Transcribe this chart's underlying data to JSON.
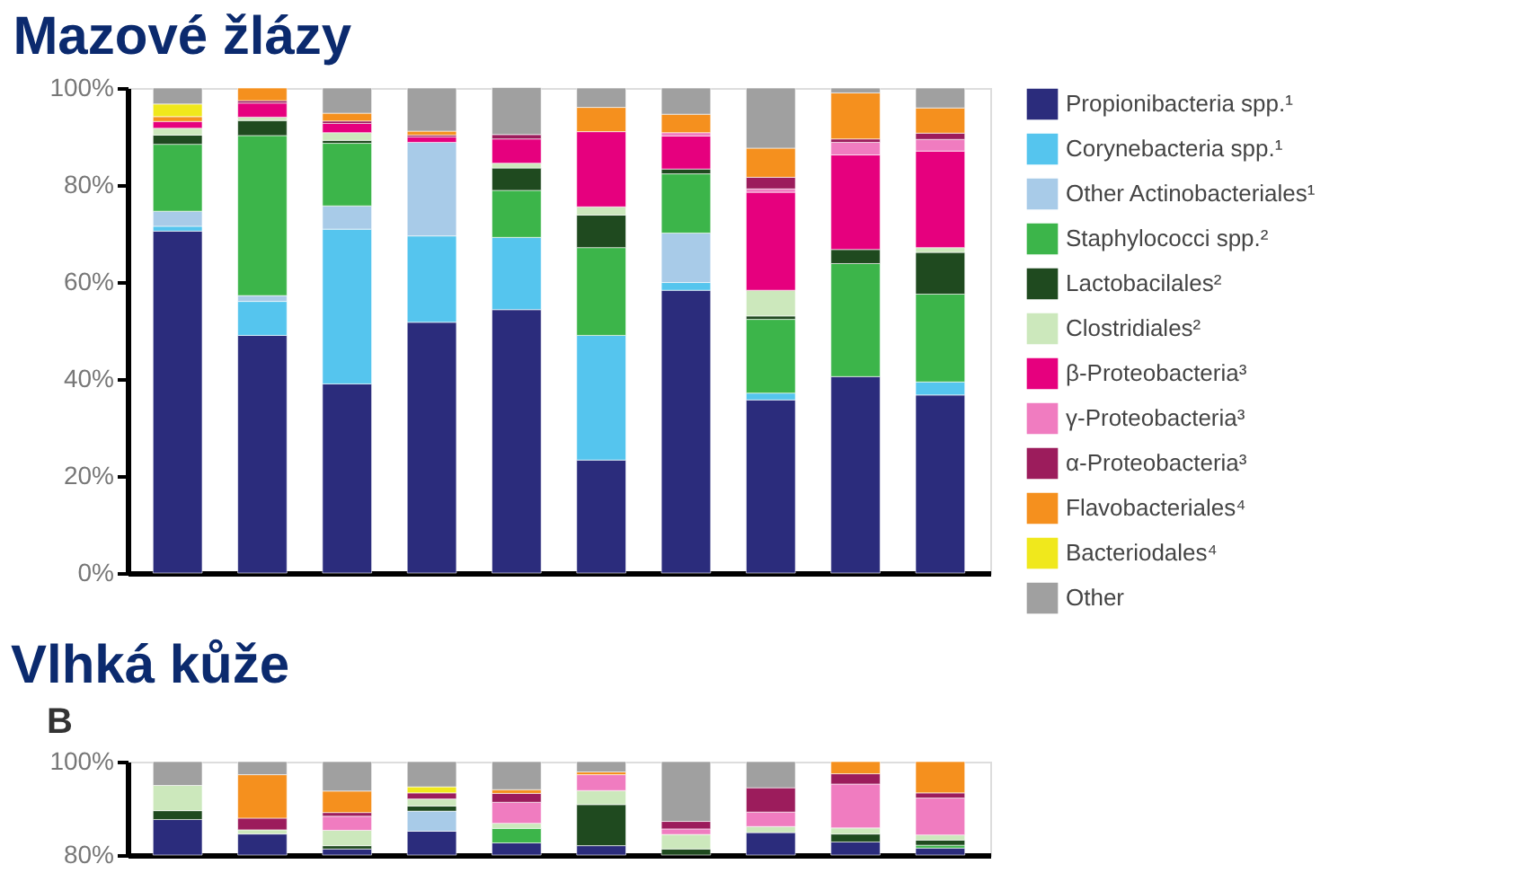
{
  "chart_data": [
    {
      "type": "bar",
      "stacked": true,
      "title": "Mazové žlázy",
      "categories": [
        null,
        null,
        null,
        null,
        null,
        null,
        null,
        null,
        null,
        null
      ],
      "ylim": [
        0,
        100
      ],
      "yticks": [
        {
          "value": 0,
          "label": "0%"
        },
        {
          "value": 20,
          "label": "20%"
        },
        {
          "value": 40,
          "label": "40%"
        },
        {
          "value": 60,
          "label": "60%"
        },
        {
          "value": 80,
          "label": "80%"
        },
        {
          "value": 100,
          "label": "100%"
        }
      ],
      "grid": false,
      "tick_labels": "y",
      "legend": "right",
      "series": [
        {
          "name": "Propionibacteria spp.¹",
          "color": "#2b2c7c",
          "values": [
            70.5,
            49,
            39,
            51.7,
            54.3,
            23.3,
            58.3,
            35.7,
            40.5,
            36.7
          ]
        },
        {
          "name": "Corynebacteria spp.¹",
          "color": "#55c5ee",
          "values": [
            1,
            7,
            31.9,
            17.8,
            14.9,
            25.7,
            1.6,
            1.4,
            null,
            2.7
          ]
        },
        {
          "name": "Other Actinobacteriales¹",
          "color": "#a8cbe8",
          "values": [
            3.1,
            1.2,
            4.8,
            19.3,
            null,
            null,
            10.2,
            null,
            null,
            null
          ]
        },
        {
          "name": "Staphylococci spp.²",
          "color": "#3cb54a",
          "values": [
            13.8,
            33,
            12.9,
            null,
            9.7,
            18.1,
            12.2,
            15.2,
            23.3,
            18.1
          ]
        },
        {
          "name": "Lactobacilales²",
          "color": "#1f4a1f",
          "values": [
            1.9,
            3.1,
            0.6,
            null,
            4.6,
            6.7,
            1,
            0.7,
            2.9,
            8.6
          ]
        },
        {
          "name": "Clostridiales²",
          "color": "#cce8bc",
          "values": [
            1.4,
            0.7,
            1.6,
            null,
            1,
            1.7,
            null,
            5.3,
            null,
            1
          ]
        },
        {
          "name": "β-Proteobacteria³",
          "color": "#e6007e",
          "values": [
            1.4,
            2.9,
            1.9,
            1.1,
            5,
            15.5,
            6.8,
            20.2,
            19.5,
            19.9
          ]
        },
        {
          "name": "γ-Proteobacteria³",
          "color": "#f07cc0",
          "values": [
            null,
            null,
            null,
            null,
            null,
            null,
            0.7,
            0.7,
            2.6,
            2.4
          ]
        },
        {
          "name": "α-Proteobacteria³",
          "color": "#9c1c5c",
          "values": [
            null,
            0.5,
            0.5,
            0.4,
            0.9,
            null,
            null,
            2.4,
            0.7,
            1.3
          ]
        },
        {
          "name": "Flavobacteriales⁴",
          "color": "#f5901e",
          "values": [
            1,
            2.6,
            1.6,
            0.8,
            null,
            5,
            3.8,
            6,
            9.5,
            5.2
          ]
        },
        {
          "name": "Bacteriodales⁴",
          "color": "#f0e81c",
          "values": [
            2.6,
            null,
            null,
            null,
            null,
            null,
            null,
            null,
            null,
            null
          ]
        },
        {
          "name": "Other",
          "color": "#a0a0a0",
          "values": [
            3.3,
            null,
            5.2,
            8.9,
            9.7,
            4,
            5.4,
            12.4,
            1,
            4.1
          ]
        }
      ]
    },
    {
      "type": "bar",
      "title": "Vlhká kůže",
      "annotations": [
        "B"
      ],
      "categories": [
        null,
        null,
        null,
        null,
        null,
        null,
        null,
        null,
        null,
        null
      ],
      "ylim": [
        80,
        100
      ],
      "yticks": [
        {
          "value": 80,
          "label": "80%"
        },
        {
          "value": 100,
          "label": "100%"
        }
      ],
      "grid": false,
      "tick_labels": "y",
      "series": [
        {
          "color": "#2b2c7c",
          "base": [
            80,
            80,
            80,
            80,
            80,
            80,
            null,
            80,
            80,
            80
          ],
          "values": [
            7.6,
            4.5,
            1.3,
            5.1,
            2.6,
            2,
            null,
            4.8,
            2.8,
            1.5
          ]
        },
        {
          "color": "#a8cbe8",
          "base": [
            null,
            null,
            null,
            85.1,
            null,
            null,
            null,
            null,
            null,
            null
          ],
          "values": [
            null,
            null,
            null,
            4.3,
            null,
            null,
            null,
            null,
            null,
            null
          ]
        },
        {
          "color": "#3cb54a",
          "base": [
            null,
            null,
            null,
            null,
            82.6,
            null,
            null,
            null,
            null,
            81.5
          ],
          "values": [
            null,
            null,
            null,
            null,
            3.1,
            null,
            null,
            null,
            null,
            0.6
          ]
        },
        {
          "color": "#1f4a1f",
          "base": [
            87.6,
            null,
            81.3,
            89.4,
            null,
            82,
            80,
            null,
            82.8,
            82.1
          ],
          "values": [
            1.9,
            null,
            0.7,
            1.1,
            null,
            8.8,
            1.3,
            null,
            1.7,
            1.1
          ]
        },
        {
          "color": "#cce8bc",
          "base": [
            89.5,
            84.5,
            82,
            90.5,
            85.7,
            90.8,
            81.3,
            84.8,
            84.5,
            83.2
          ],
          "values": [
            5.4,
            0.9,
            3.3,
            1.5,
            1.1,
            3,
            3.1,
            1.3,
            1.3,
            1.1
          ]
        },
        {
          "color": "#f07cc0",
          "base": [
            null,
            null,
            85.3,
            null,
            86.8,
            93.8,
            84.4,
            86.1,
            85.8,
            84.3
          ],
          "values": [
            null,
            null,
            3,
            null,
            4.5,
            3.4,
            1.2,
            3.1,
            9.4,
            7.9
          ]
        },
        {
          "color": "#9c1c5c",
          "base": [
            null,
            85.4,
            88.3,
            92,
            91.3,
            null,
            85.6,
            89.2,
            95.2,
            92.2
          ],
          "values": [
            null,
            2.5,
            0.8,
            1.3,
            1.9,
            null,
            1.6,
            5.2,
            2.2,
            1.1
          ]
        },
        {
          "color": "#f5901e",
          "base": [
            null,
            87.9,
            89.1,
            null,
            93.2,
            97.2,
            null,
            null,
            97.4,
            93.3
          ],
          "values": [
            null,
            9.3,
            4.6,
            null,
            0.8,
            0.6,
            null,
            null,
            2.6,
            6.7
          ]
        },
        {
          "color": "#f0e81c",
          "base": [
            null,
            null,
            null,
            93.3,
            null,
            null,
            null,
            null,
            null,
            null
          ],
          "values": [
            null,
            null,
            null,
            1.3,
            null,
            null,
            null,
            null,
            null,
            null
          ]
        },
        {
          "color": "#a0a0a0",
          "base": [
            94.9,
            97.2,
            93.7,
            94.6,
            94,
            97.8,
            87.2,
            94.4,
            null,
            null
          ],
          "values": [
            5.1,
            2.8,
            6.3,
            5.4,
            6,
            2.2,
            12.8,
            5.6,
            null,
            null
          ]
        }
      ]
    }
  ]
}
